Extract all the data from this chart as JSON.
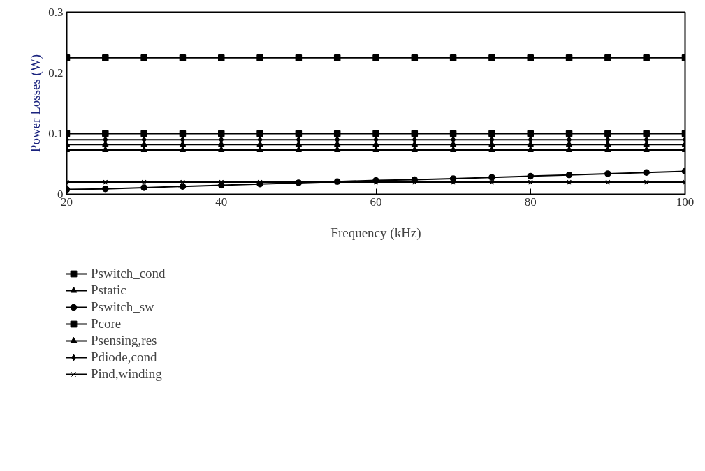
{
  "chart_data": {
    "type": "line",
    "xlabel": "Frequency (kHz)",
    "ylabel": "Power Losses (W)",
    "x": [
      20,
      25,
      30,
      35,
      40,
      45,
      50,
      55,
      60,
      65,
      70,
      75,
      80,
      85,
      90,
      95,
      100
    ],
    "xlim": [
      20,
      100
    ],
    "xticks": [
      20,
      40,
      60,
      80,
      100
    ],
    "ylim": [
      0,
      0.3
    ],
    "yticks": [
      0,
      0.1,
      0.2,
      0.3
    ],
    "grid": false,
    "legend": "bottom left",
    "series": [
      {
        "name": "Pswitch_cond",
        "color": "#000000",
        "marker": "square",
        "values": [
          0.225,
          0.225,
          0.225,
          0.225,
          0.225,
          0.225,
          0.225,
          0.225,
          0.225,
          0.225,
          0.225,
          0.225,
          0.225,
          0.225,
          0.225,
          0.225,
          0.225
        ]
      },
      {
        "name": "Pstatic",
        "color": "#000000",
        "marker": "triangle",
        "values": [
          0.073,
          0.073,
          0.073,
          0.073,
          0.073,
          0.073,
          0.073,
          0.073,
          0.073,
          0.073,
          0.073,
          0.073,
          0.073,
          0.073,
          0.073,
          0.073,
          0.073
        ]
      },
      {
        "name": "Pswitch_sw",
        "color": "#000000",
        "marker": "circle",
        "values": [
          0.008,
          0.009,
          0.011,
          0.013,
          0.015,
          0.017,
          0.019,
          0.021,
          0.023,
          0.024,
          0.026,
          0.028,
          0.03,
          0.032,
          0.034,
          0.036,
          0.038
        ]
      },
      {
        "name": "Pcore",
        "color": "#000000",
        "marker": "square",
        "values": [
          0.1,
          0.1,
          0.1,
          0.1,
          0.1,
          0.1,
          0.1,
          0.1,
          0.1,
          0.1,
          0.1,
          0.1,
          0.1,
          0.1,
          0.1,
          0.1,
          0.1
        ]
      },
      {
        "name": "Psensing,res",
        "color": "#000000",
        "marker": "triangle",
        "values": [
          0.082,
          0.082,
          0.082,
          0.082,
          0.082,
          0.082,
          0.082,
          0.082,
          0.082,
          0.082,
          0.082,
          0.082,
          0.082,
          0.082,
          0.082,
          0.082,
          0.082
        ]
      },
      {
        "name": "Pdiode,cond",
        "color": "#000000",
        "marker": "diamond",
        "values": [
          0.09,
          0.09,
          0.09,
          0.09,
          0.09,
          0.09,
          0.09,
          0.09,
          0.09,
          0.09,
          0.09,
          0.09,
          0.09,
          0.09,
          0.09,
          0.09,
          0.09
        ]
      },
      {
        "name": "Pind,winding",
        "color": "#000000",
        "marker": "cross",
        "values": [
          0.02,
          0.02,
          0.02,
          0.02,
          0.02,
          0.02,
          0.02,
          0.02,
          0.02,
          0.02,
          0.02,
          0.02,
          0.02,
          0.02,
          0.02,
          0.02,
          0.02
        ]
      }
    ]
  }
}
